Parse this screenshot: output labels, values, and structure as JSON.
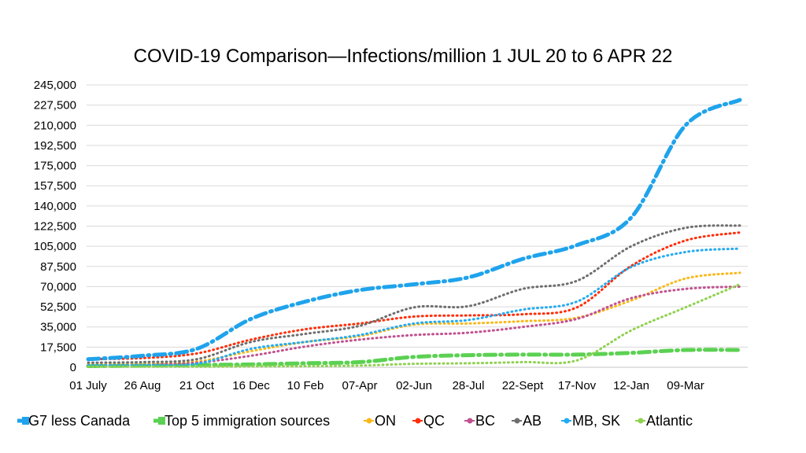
{
  "chart_data": {
    "type": "line",
    "title": "COVID-19 Comparison—Infections/million 1 JUL 20 to 6 APR 22",
    "xlabel": "",
    "ylabel": "",
    "ylim": [
      0,
      245000
    ],
    "y_ticks": [
      0,
      17500,
      35000,
      52500,
      70000,
      87500,
      105000,
      122500,
      140000,
      157500,
      175000,
      192500,
      210000,
      227500,
      245000
    ],
    "y_tick_labels": [
      "0",
      "17,500",
      "35,000",
      "52,500",
      "70,000",
      "87,500",
      "105,000",
      "122,500",
      "140,000",
      "157,500",
      "175,000",
      "192,500",
      "210,000",
      "227,500",
      "245,000"
    ],
    "x_tick_labels": [
      "01 July",
      "26 Aug",
      "21 Oct",
      "16 Dec",
      "10 Feb",
      "07-Apr",
      "02-Jun",
      "28-Jul",
      "22-Sept",
      "17-Nov",
      "12-Jan",
      "09-Mar"
    ],
    "x": [
      "01 July",
      "26 Aug",
      "21 Oct",
      "16 Dec",
      "10 Feb",
      "07-Apr",
      "02-Jun",
      "28-Jul",
      "22-Sept",
      "17-Nov",
      "12-Jan",
      "09-Mar",
      "06-Apr"
    ],
    "grid": true,
    "legend_position": "bottom",
    "series": [
      {
        "name": "G7 less Canada",
        "color": "#1FA3EC",
        "style": "dashdot",
        "width": 5,
        "values": [
          7000,
          10000,
          16000,
          42000,
          57000,
          67000,
          72000,
          78000,
          94000,
          106000,
          130000,
          210000,
          232000
        ]
      },
      {
        "name": "Top 5 immigration sources",
        "color": "#5BD152",
        "style": "dashdot",
        "width": 5,
        "values": [
          1000,
          1500,
          2000,
          2500,
          3500,
          4500,
          9000,
          10500,
          11000,
          11000,
          12500,
          15000,
          15000
        ]
      },
      {
        "name": "ON",
        "color": "#FAB818",
        "style": "dotted",
        "width": 3,
        "values": [
          2500,
          3000,
          5000,
          14000,
          22000,
          27000,
          37000,
          38000,
          40000,
          43000,
          58000,
          77000,
          82000
        ]
      },
      {
        "name": "QC",
        "color": "#FF2D08",
        "style": "dotted",
        "width": 3,
        "values": [
          7000,
          8000,
          12000,
          24000,
          33000,
          38000,
          44000,
          45000,
          46000,
          52000,
          88000,
          110000,
          117000
        ]
      },
      {
        "name": "BC",
        "color": "#C2518F",
        "style": "dotted",
        "width": 3,
        "values": [
          1500,
          2000,
          4000,
          10000,
          18000,
          24000,
          28000,
          30000,
          35000,
          42000,
          60000,
          68000,
          70000
        ]
      },
      {
        "name": "AB",
        "color": "#6E6E6E",
        "style": "dotted",
        "width": 3,
        "values": [
          4000,
          4500,
          7000,
          22000,
          29000,
          36000,
          52000,
          53000,
          68000,
          75000,
          105000,
          121000,
          123000
        ]
      },
      {
        "name": "MB, SK",
        "color": "#23AAF2",
        "style": "dotted",
        "width": 3,
        "values": [
          1800,
          2000,
          3000,
          16000,
          22000,
          28000,
          38000,
          41000,
          50000,
          57000,
          87000,
          100000,
          103000
        ]
      },
      {
        "name": "Atlantic",
        "color": "#8FD14F",
        "style": "dotted",
        "width": 3,
        "values": [
          500,
          500,
          500,
          800,
          1000,
          1500,
          3000,
          3500,
          4500,
          6000,
          32000,
          52000,
          72000
        ]
      }
    ]
  }
}
